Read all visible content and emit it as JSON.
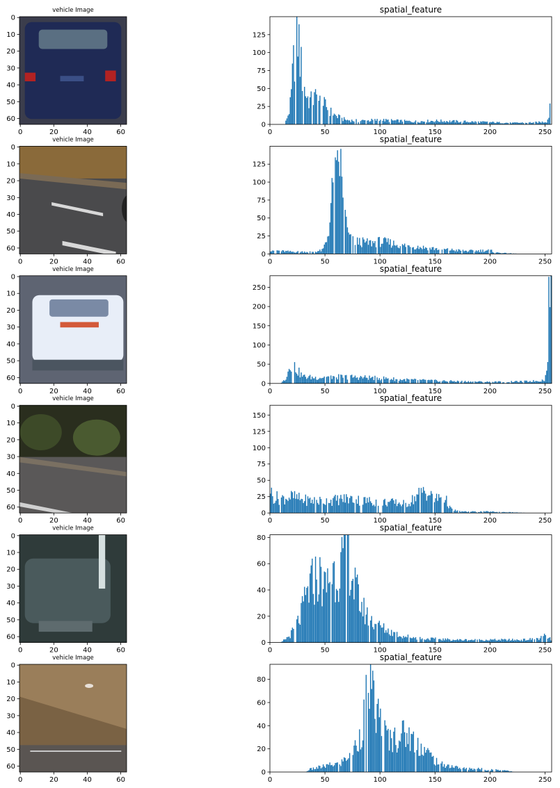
{
  "figure": {
    "rows": [
      {
        "image": {
          "title": "vehicle Image",
          "description": "rear view of a dark blue hatchback car with red tail lights",
          "xticks": [
            0,
            20,
            40,
            60
          ],
          "yticks": [
            0,
            10,
            20,
            30,
            40,
            50,
            60
          ],
          "palette": {
            "bg": "#3b3d4c",
            "body": "#1f2a55",
            "window": "#5a6f82",
            "light": "#b22222"
          }
        },
        "chart": {
          "type": "bar",
          "title": "spatial_feature",
          "xlim": [
            0,
            256
          ],
          "ylim": [
            0,
            150
          ],
          "xticks": [
            0,
            50,
            100,
            150,
            200,
            250
          ],
          "yticks": [
            0,
            25,
            50,
            75,
            100,
            125
          ],
          "anchors": [
            [
              0,
              0
            ],
            [
              14,
              0
            ],
            [
              15,
              8
            ],
            [
              17,
              15
            ],
            [
              19,
              30
            ],
            [
              21,
              75
            ],
            [
              23,
              110
            ],
            [
              24,
              140
            ],
            [
              26,
              120
            ],
            [
              27,
              105
            ],
            [
              29,
              70
            ],
            [
              31,
              52
            ],
            [
              33,
              42
            ],
            [
              35,
              35
            ],
            [
              38,
              32
            ],
            [
              42,
              38
            ],
            [
              45,
              32
            ],
            [
              48,
              28
            ],
            [
              52,
              24
            ],
            [
              56,
              16
            ],
            [
              60,
              12
            ],
            [
              65,
              8
            ],
            [
              70,
              6
            ],
            [
              80,
              5
            ],
            [
              100,
              6
            ],
            [
              130,
              4
            ],
            [
              150,
              5
            ],
            [
              200,
              3
            ],
            [
              220,
              2
            ],
            [
              245,
              3
            ],
            [
              252,
              4
            ],
            [
              254,
              15
            ],
            [
              255,
              45
            ]
          ]
        }
      },
      {
        "image": {
          "title": "vehicle Image",
          "description": "dark asphalt road with white lane markings and a dry grass verge",
          "xticks": [
            0,
            20,
            40,
            60
          ],
          "yticks": [
            0,
            10,
            20,
            30,
            40,
            50,
            60
          ],
          "palette": {
            "bg": "#4a4a4c",
            "top": "#8a6a3a",
            "line": "#d8d8d8"
          }
        },
        "chart": {
          "type": "bar",
          "title": "spatial_feature",
          "xlim": [
            0,
            256
          ],
          "ylim": [
            0,
            150
          ],
          "xticks": [
            0,
            50,
            100,
            150,
            200,
            250
          ],
          "yticks": [
            0,
            25,
            50,
            75,
            100,
            125
          ],
          "anchors": [
            [
              0,
              6
            ],
            [
              10,
              4
            ],
            [
              20,
              3
            ],
            [
              40,
              3
            ],
            [
              48,
              5
            ],
            [
              52,
              20
            ],
            [
              55,
              55
            ],
            [
              57,
              85
            ],
            [
              59,
              100
            ],
            [
              61,
              95
            ],
            [
              62,
              120
            ],
            [
              63,
              140
            ],
            [
              64,
              130
            ],
            [
              65,
              100
            ],
            [
              67,
              70
            ],
            [
              69,
              45
            ],
            [
              72,
              22
            ],
            [
              75,
              18
            ],
            [
              80,
              17
            ],
            [
              90,
              15
            ],
            [
              100,
              17
            ],
            [
              110,
              15
            ],
            [
              120,
              12
            ],
            [
              140,
              9
            ],
            [
              160,
              6
            ],
            [
              180,
              4
            ],
            [
              200,
              5
            ],
            [
              205,
              2
            ],
            [
              215,
              1
            ],
            [
              230,
              0
            ],
            [
              256,
              0
            ]
          ]
        }
      },
      {
        "image": {
          "title": "vehicle Image",
          "description": "rear view of a white car on a grey blurred background",
          "xticks": [
            0,
            20,
            40,
            60
          ],
          "yticks": [
            0,
            10,
            20,
            30,
            40,
            50,
            60
          ],
          "palette": {
            "bg": "#5e6472",
            "body": "#e8eef8",
            "window": "#7a8aa5",
            "light": "#d35a3a"
          }
        },
        "chart": {
          "type": "bar",
          "title": "spatial_feature",
          "xlim": [
            0,
            256
          ],
          "ylim": [
            0,
            280
          ],
          "xticks": [
            0,
            50,
            100,
            150,
            200,
            250
          ],
          "yticks": [
            0,
            50,
            100,
            150,
            200,
            250
          ],
          "anchors": [
            [
              0,
              0
            ],
            [
              9,
              0
            ],
            [
              11,
              3
            ],
            [
              14,
              12
            ],
            [
              17,
              35
            ],
            [
              19,
              55
            ],
            [
              21,
              50
            ],
            [
              23,
              42
            ],
            [
              26,
              30
            ],
            [
              30,
              18
            ],
            [
              40,
              15
            ],
            [
              60,
              18
            ],
            [
              80,
              16
            ],
            [
              100,
              14
            ],
            [
              120,
              10
            ],
            [
              150,
              7
            ],
            [
              180,
              5
            ],
            [
              200,
              4
            ],
            [
              230,
              5
            ],
            [
              245,
              7
            ],
            [
              250,
              10
            ],
            [
              252,
              40
            ],
            [
              254,
              265
            ],
            [
              256,
              260
            ]
          ]
        }
      },
      {
        "image": {
          "title": "vehicle Image",
          "description": "dark green roadside bushes above a grey road with a white lane line",
          "xticks": [
            0,
            20,
            40,
            60
          ],
          "yticks": [
            0,
            10,
            20,
            30,
            40,
            50,
            60
          ],
          "palette": {
            "bg": "#2a2e1e",
            "foliage": "#3d4a28",
            "road": "#5a5858",
            "line": "#d0d0d0"
          }
        },
        "chart": {
          "type": "bar",
          "title": "spatial_feature",
          "xlim": [
            0,
            256
          ],
          "ylim": [
            0,
            165
          ],
          "xticks": [
            0,
            50,
            100,
            150,
            200,
            250
          ],
          "yticks": [
            0,
            25,
            50,
            75,
            100,
            125,
            150
          ],
          "anchors": [
            [
              0,
              45
            ],
            [
              2,
              25
            ],
            [
              10,
              22
            ],
            [
              20,
              25
            ],
            [
              30,
              20
            ],
            [
              50,
              18
            ],
            [
              70,
              22
            ],
            [
              90,
              18
            ],
            [
              110,
              16
            ],
            [
              125,
              14
            ],
            [
              135,
              28
            ],
            [
              140,
              35
            ],
            [
              145,
              28
            ],
            [
              150,
              20
            ],
            [
              155,
              25
            ],
            [
              160,
              20
            ],
            [
              165,
              5
            ],
            [
              175,
              2
            ],
            [
              200,
              2
            ],
            [
              220,
              1
            ],
            [
              235,
              0
            ],
            [
              256,
              0
            ]
          ]
        }
      },
      {
        "image": {
          "title": "vehicle Image",
          "description": "blurry dark teal car in shadow with a bright streak on the right",
          "xticks": [
            0,
            20,
            40,
            60
          ],
          "yticks": [
            0,
            10,
            20,
            30,
            40,
            50,
            60
          ],
          "palette": {
            "bg": "#2f3b3a",
            "body": "#4a5a5c",
            "streak": "#d6e0e0"
          }
        },
        "chart": {
          "type": "bar",
          "title": "spatial_feature",
          "xlim": [
            0,
            256
          ],
          "ylim": [
            0,
            82
          ],
          "xticks": [
            0,
            50,
            100,
            150,
            200,
            250
          ],
          "yticks": [
            0,
            20,
            40,
            60,
            80
          ],
          "anchors": [
            [
              0,
              0
            ],
            [
              10,
              0
            ],
            [
              13,
              2
            ],
            [
              18,
              5
            ],
            [
              22,
              10
            ],
            [
              28,
              20
            ],
            [
              33,
              35
            ],
            [
              38,
              45
            ],
            [
              42,
              50
            ],
            [
              46,
              48
            ],
            [
              50,
              40
            ],
            [
              54,
              50
            ],
            [
              57,
              55
            ],
            [
              60,
              52
            ],
            [
              64,
              58
            ],
            [
              67,
              62
            ],
            [
              70,
              72
            ],
            [
              71,
              77
            ],
            [
              73,
              60
            ],
            [
              76,
              45
            ],
            [
              80,
              35
            ],
            [
              85,
              25
            ],
            [
              90,
              18
            ],
            [
              95,
              15
            ],
            [
              100,
              12
            ],
            [
              110,
              8
            ],
            [
              120,
              5
            ],
            [
              140,
              3
            ],
            [
              170,
              2
            ],
            [
              200,
              2
            ],
            [
              230,
              2
            ],
            [
              245,
              3
            ],
            [
              250,
              5
            ],
            [
              256,
              2
            ]
          ]
        }
      },
      {
        "image": {
          "title": "vehicle Image",
          "description": "sunlit dry grassy slope above a dark road edge",
          "xticks": [
            0,
            20,
            40,
            60
          ],
          "yticks": [
            0,
            10,
            20,
            30,
            40,
            50,
            60
          ],
          "palette": {
            "bg": "#9a7e5a",
            "slope": "#7a6244",
            "road": "#5a5552",
            "line": "#c8c8c8"
          }
        },
        "chart": {
          "type": "bar",
          "title": "spatial_feature",
          "xlim": [
            0,
            256
          ],
          "ylim": [
            0,
            93
          ],
          "xticks": [
            0,
            50,
            100,
            150,
            200,
            250
          ],
          "yticks": [
            0,
            20,
            40,
            60,
            80
          ],
          "anchors": [
            [
              0,
              0
            ],
            [
              33,
              0
            ],
            [
              35,
              2
            ],
            [
              45,
              4
            ],
            [
              55,
              6
            ],
            [
              65,
              8
            ],
            [
              72,
              15
            ],
            [
              78,
              22
            ],
            [
              83,
              35
            ],
            [
              87,
              55
            ],
            [
              89,
              80
            ],
            [
              90,
              87
            ],
            [
              92,
              70
            ],
            [
              95,
              55
            ],
            [
              100,
              45
            ],
            [
              105,
              32
            ],
            [
              110,
              28
            ],
            [
              115,
              30
            ],
            [
              120,
              33
            ],
            [
              125,
              32
            ],
            [
              130,
              28
            ],
            [
              135,
              24
            ],
            [
              140,
              20
            ],
            [
              145,
              15
            ],
            [
              150,
              10
            ],
            [
              155,
              7
            ],
            [
              165,
              5
            ],
            [
              175,
              3
            ],
            [
              185,
              3
            ],
            [
              200,
              2
            ],
            [
              210,
              2
            ],
            [
              218,
              1
            ],
            [
              222,
              0
            ],
            [
              256,
              0
            ]
          ]
        }
      }
    ]
  }
}
